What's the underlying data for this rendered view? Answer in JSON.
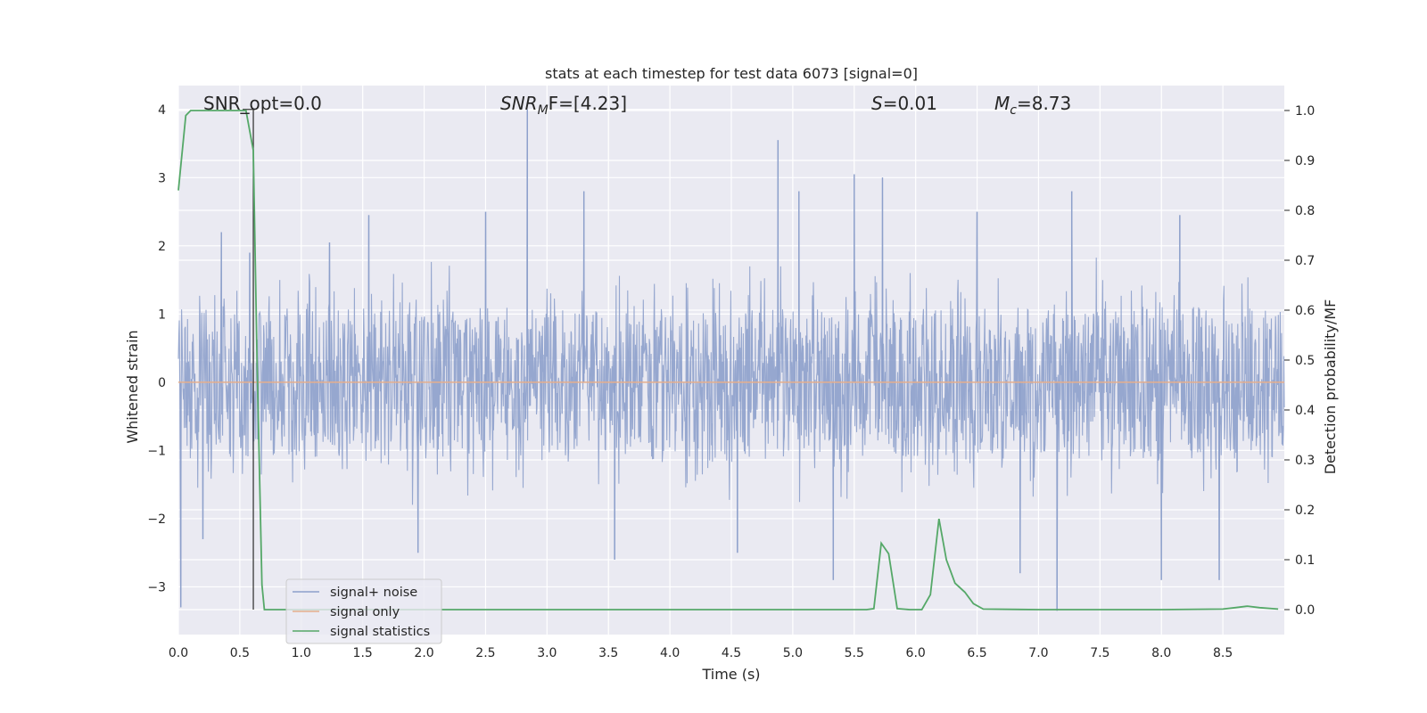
{
  "chart_data": {
    "type": "line",
    "title": "stats at each timestep for test data 6073 [signal=0]",
    "xlabel": "Time (s)",
    "ylabel_left": "Whitened strain",
    "ylabel_right": "Detection probability/MF",
    "xlim": [
      0,
      9.0
    ],
    "ylim_left": [
      -3.7,
      4.35
    ],
    "ylim_right": [
      -0.05,
      1.05
    ],
    "xticks": [
      "0.0",
      "0.5",
      "1.0",
      "1.5",
      "2.0",
      "2.5",
      "3.0",
      "3.5",
      "4.0",
      "4.5",
      "5.0",
      "5.5",
      "6.0",
      "6.5",
      "7.0",
      "7.5",
      "8.0",
      "8.5"
    ],
    "yticks_left": [
      "4",
      "3",
      "2",
      "1",
      "0",
      "−1",
      "−2",
      "−3"
    ],
    "yticks_right": [
      "1.0",
      "0.9",
      "0.8",
      "0.7",
      "0.6",
      "0.5",
      "0.4",
      "0.3",
      "0.2",
      "0.1",
      "0.0"
    ],
    "grid": true,
    "legend_position": "bottom-left",
    "annotations": {
      "snr_opt": "SNR_opt=0.0",
      "snr_mf_label": "SNR",
      "snr_mf_sub": "M",
      "snr_mf_value": "F=[4.23]",
      "s_label": "S",
      "s_value": "=0.01",
      "mc_label": "M",
      "mc_sub": "c",
      "mc_value": "=8.73"
    },
    "marker_time": 0.61,
    "series": [
      {
        "name": "signal+ noise",
        "color": "#8da0cb",
        "axis": "left",
        "envelope_typical": 1.85,
        "peaks": [
          {
            "x": 0.02,
            "y": -3.3
          },
          {
            "x": 0.2,
            "y": -2.3
          },
          {
            "x": 0.35,
            "y": 2.2
          },
          {
            "x": 0.58,
            "y": 1.9
          },
          {
            "x": 1.23,
            "y": 2.05
          },
          {
            "x": 1.55,
            "y": 2.45
          },
          {
            "x": 1.95,
            "y": -2.5
          },
          {
            "x": 2.5,
            "y": 2.5
          },
          {
            "x": 2.84,
            "y": 4.0
          },
          {
            "x": 3.3,
            "y": 2.8
          },
          {
            "x": 3.55,
            "y": -2.6
          },
          {
            "x": 4.55,
            "y": -2.5
          },
          {
            "x": 4.88,
            "y": 3.55
          },
          {
            "x": 5.05,
            "y": 2.8
          },
          {
            "x": 5.33,
            "y": -2.9
          },
          {
            "x": 5.5,
            "y": 3.05
          },
          {
            "x": 5.73,
            "y": 3.0
          },
          {
            "x": 6.5,
            "y": 2.5
          },
          {
            "x": 6.85,
            "y": -2.8
          },
          {
            "x": 7.15,
            "y": -3.35
          },
          {
            "x": 7.27,
            "y": 2.8
          },
          {
            "x": 8.0,
            "y": -2.9
          },
          {
            "x": 8.15,
            "y": 2.45
          },
          {
            "x": 8.47,
            "y": -2.9
          }
        ]
      },
      {
        "name": "signal only",
        "color": "#e5ae8d",
        "axis": "left",
        "x": [
          0,
          9.0
        ],
        "y": [
          0,
          0
        ]
      },
      {
        "name": "signal statistics",
        "color": "#55a868",
        "axis": "right",
        "x": [
          0.0,
          0.06,
          0.1,
          0.15,
          0.2,
          0.3,
          0.4,
          0.5,
          0.55,
          0.61,
          0.64,
          0.68,
          0.7,
          0.75,
          1.0,
          2.0,
          3.0,
          4.0,
          5.0,
          5.6,
          5.66,
          5.72,
          5.78,
          5.85,
          5.95,
          6.05,
          6.12,
          6.19,
          6.25,
          6.32,
          6.4,
          6.47,
          6.55,
          7.0,
          8.0,
          8.5,
          8.6,
          8.7,
          8.8,
          8.95
        ],
        "y": [
          0.84,
          0.99,
          1.0,
          1.0,
          1.0,
          1.0,
          1.0,
          1.0,
          1.0,
          0.92,
          0.5,
          0.05,
          0.0,
          0.0,
          0.0,
          0.0,
          0.0,
          0.0,
          0.0,
          0.0,
          0.002,
          0.133,
          0.112,
          0.002,
          0.0,
          0.0,
          0.03,
          0.182,
          0.1,
          0.053,
          0.035,
          0.012,
          0.001,
          0.0,
          0.0,
          0.001,
          0.004,
          0.007,
          0.004,
          0.001
        ]
      }
    ]
  }
}
